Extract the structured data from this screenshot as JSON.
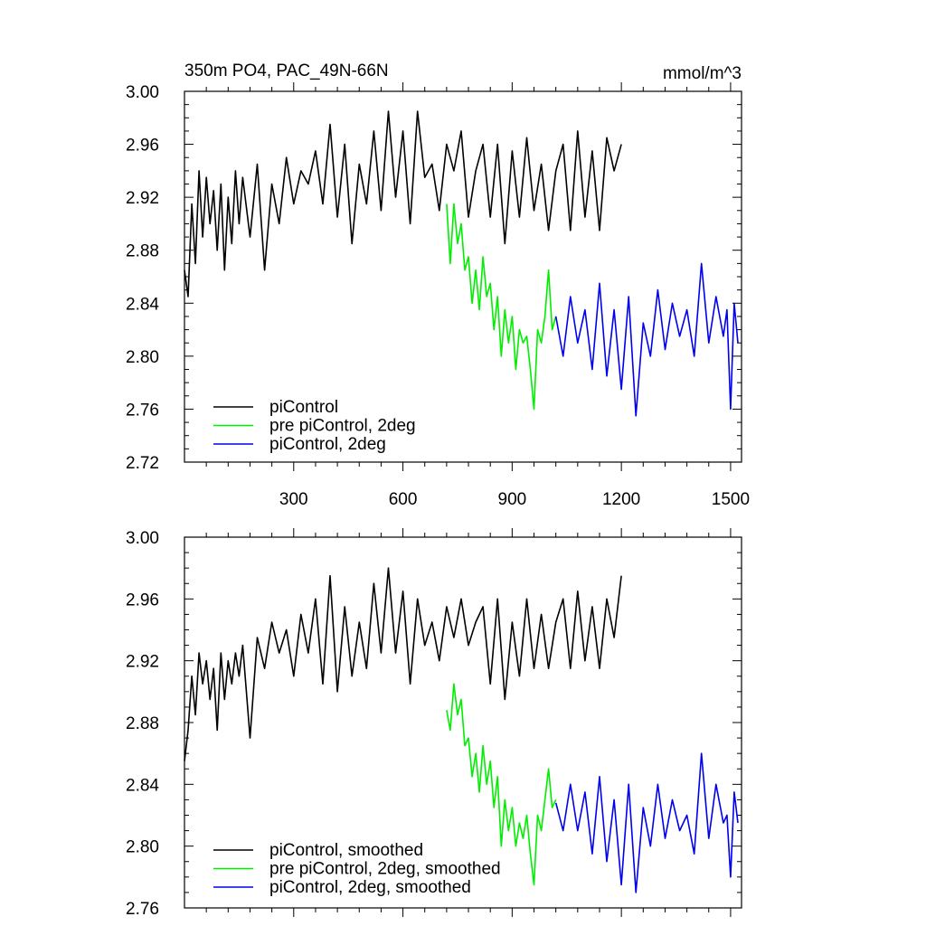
{
  "figure_title": "350m PO4, PAC_49N-66N",
  "units": "mmol/m^3",
  "colors": {
    "piControl": "#000000",
    "pre_piControl_2deg": "#00ee00",
    "piControl_2deg": "#0000ee"
  },
  "chart_data": [
    {
      "type": "line",
      "title": "350m PO4, PAC_49N-66N",
      "units_label": "mmol/m^3",
      "xlabel": "",
      "ylabel": "",
      "xlim": [
        0,
        1530
      ],
      "ylim": [
        2.72,
        3.0
      ],
      "xticks": [
        300,
        600,
        900,
        1200,
        1500
      ],
      "xtick_labels": [
        "300",
        "600",
        "900",
        "1200",
        "1500"
      ],
      "yticks": [
        2.72,
        2.76,
        2.8,
        2.84,
        2.88,
        2.92,
        2.96,
        3.0
      ],
      "ytick_labels": [
        "2.72",
        "2.76",
        "2.80",
        "2.84",
        "2.88",
        "2.92",
        "2.96",
        "3.00"
      ],
      "grid": false,
      "legend_position": "bottom-left",
      "series": [
        {
          "name": "piControl",
          "color": "#000000",
          "x": [
            0,
            10,
            20,
            30,
            40,
            50,
            60,
            70,
            80,
            90,
            100,
            110,
            120,
            130,
            140,
            150,
            160,
            180,
            200,
            220,
            240,
            260,
            280,
            300,
            320,
            340,
            360,
            380,
            400,
            420,
            440,
            460,
            480,
            500,
            520,
            540,
            560,
            580,
            600,
            620,
            640,
            660,
            680,
            700,
            720,
            740,
            760,
            780,
            800,
            820,
            840,
            860,
            880,
            900,
            920,
            940,
            960,
            980,
            1000,
            1020,
            1040,
            1060,
            1080,
            1100,
            1120,
            1140,
            1160,
            1180,
            1200
          ],
          "y": [
            2.865,
            2.845,
            2.915,
            2.87,
            2.94,
            2.89,
            2.935,
            2.9,
            2.925,
            2.88,
            2.93,
            2.865,
            2.92,
            2.885,
            2.94,
            2.9,
            2.935,
            2.89,
            2.945,
            2.865,
            2.93,
            2.9,
            2.95,
            2.915,
            2.94,
            2.93,
            2.955,
            2.915,
            2.975,
            2.905,
            2.96,
            2.885,
            2.945,
            2.915,
            2.97,
            2.91,
            2.985,
            2.92,
            2.97,
            2.9,
            2.985,
            2.935,
            2.945,
            2.91,
            2.96,
            2.94,
            2.97,
            2.905,
            2.94,
            2.96,
            2.905,
            2.96,
            2.885,
            2.955,
            2.905,
            2.965,
            2.91,
            2.945,
            2.895,
            2.94,
            2.96,
            2.895,
            2.97,
            2.905,
            2.955,
            2.895,
            2.965,
            2.94,
            2.96
          ]
        },
        {
          "name": "pre piControl, 2deg",
          "color": "#00ee00",
          "x": [
            720,
            730,
            740,
            750,
            760,
            770,
            780,
            790,
            800,
            810,
            820,
            830,
            840,
            850,
            860,
            870,
            880,
            890,
            900,
            910,
            920,
            930,
            940,
            950,
            960,
            970,
            980,
            990,
            1000,
            1010,
            1020
          ],
          "y": [
            2.915,
            2.87,
            2.915,
            2.885,
            2.9,
            2.865,
            2.875,
            2.84,
            2.865,
            2.835,
            2.875,
            2.845,
            2.855,
            2.82,
            2.845,
            2.8,
            2.835,
            2.81,
            2.83,
            2.79,
            2.82,
            2.81,
            2.815,
            2.79,
            2.76,
            2.82,
            2.81,
            2.83,
            2.865,
            2.82,
            2.83
          ]
        },
        {
          "name": "piControl, 2deg",
          "color": "#0000ee",
          "x": [
            1020,
            1040,
            1060,
            1080,
            1100,
            1120,
            1140,
            1160,
            1180,
            1200,
            1220,
            1240,
            1260,
            1280,
            1300,
            1320,
            1340,
            1360,
            1380,
            1400,
            1420,
            1440,
            1460,
            1480,
            1490,
            1500,
            1510,
            1520
          ],
          "y": [
            2.83,
            2.8,
            2.845,
            2.81,
            2.835,
            2.79,
            2.855,
            2.785,
            2.835,
            2.775,
            2.845,
            2.755,
            2.825,
            2.8,
            2.85,
            2.805,
            2.84,
            2.815,
            2.835,
            2.8,
            2.87,
            2.81,
            2.845,
            2.815,
            2.835,
            2.76,
            2.84,
            2.81
          ]
        }
      ]
    },
    {
      "type": "line",
      "title": "",
      "xlabel": "",
      "ylabel": "",
      "xlim": [
        0,
        1530
      ],
      "ylim": [
        2.76,
        3.0
      ],
      "xticks": [
        300,
        600,
        900,
        1200,
        1500
      ],
      "yticks": [
        2.76,
        2.8,
        2.84,
        2.88,
        2.92,
        2.96,
        3.0
      ],
      "ytick_labels": [
        "2.76",
        "2.80",
        "2.84",
        "2.88",
        "2.92",
        "2.96",
        "3.00"
      ],
      "grid": false,
      "legend_position": "bottom-left",
      "series": [
        {
          "name": "piControl, smoothed",
          "color": "#000000",
          "x": [
            0,
            10,
            20,
            30,
            40,
            50,
            60,
            70,
            80,
            90,
            100,
            110,
            120,
            130,
            140,
            150,
            160,
            180,
            200,
            220,
            240,
            260,
            280,
            300,
            320,
            340,
            360,
            380,
            400,
            420,
            440,
            460,
            480,
            500,
            520,
            540,
            560,
            580,
            600,
            620,
            640,
            660,
            680,
            700,
            720,
            740,
            760,
            780,
            800,
            820,
            840,
            860,
            880,
            900,
            920,
            940,
            960,
            980,
            1000,
            1020,
            1040,
            1060,
            1080,
            1100,
            1120,
            1140,
            1160,
            1180,
            1200
          ],
          "y": [
            2.855,
            2.875,
            2.91,
            2.885,
            2.925,
            2.905,
            2.92,
            2.895,
            2.915,
            2.875,
            2.925,
            2.895,
            2.92,
            2.905,
            2.925,
            2.91,
            2.93,
            2.87,
            2.935,
            2.915,
            2.945,
            2.925,
            2.94,
            2.91,
            2.95,
            2.925,
            2.96,
            2.905,
            2.975,
            2.9,
            2.955,
            2.91,
            2.945,
            2.915,
            2.97,
            2.925,
            2.98,
            2.925,
            2.965,
            2.905,
            2.96,
            2.93,
            2.945,
            2.92,
            2.955,
            2.935,
            2.96,
            2.93,
            2.945,
            2.955,
            2.905,
            2.96,
            2.895,
            2.945,
            2.91,
            2.96,
            2.915,
            2.95,
            2.915,
            2.945,
            2.96,
            2.915,
            2.965,
            2.92,
            2.955,
            2.915,
            2.96,
            2.935,
            2.975
          ]
        },
        {
          "name": "pre piControl, 2deg, smoothed",
          "color": "#00ee00",
          "x": [
            720,
            730,
            740,
            750,
            760,
            770,
            780,
            790,
            800,
            810,
            820,
            830,
            840,
            850,
            860,
            870,
            880,
            890,
            900,
            910,
            920,
            930,
            940,
            950,
            960,
            970,
            980,
            990,
            1000,
            1010,
            1020
          ],
          "y": [
            2.888,
            2.875,
            2.905,
            2.885,
            2.895,
            2.865,
            2.87,
            2.845,
            2.86,
            2.835,
            2.865,
            2.84,
            2.855,
            2.825,
            2.845,
            2.8,
            2.83,
            2.81,
            2.825,
            2.8,
            2.815,
            2.805,
            2.82,
            2.795,
            2.775,
            2.82,
            2.81,
            2.83,
            2.85,
            2.825,
            2.83
          ]
        },
        {
          "name": "piControl, 2deg, smoothed",
          "color": "#0000ee",
          "x": [
            1020,
            1040,
            1060,
            1080,
            1100,
            1120,
            1140,
            1160,
            1180,
            1200,
            1220,
            1240,
            1260,
            1280,
            1300,
            1320,
            1340,
            1360,
            1380,
            1400,
            1420,
            1440,
            1460,
            1480,
            1490,
            1500,
            1510,
            1520
          ],
          "y": [
            2.828,
            2.81,
            2.84,
            2.81,
            2.835,
            2.795,
            2.845,
            2.79,
            2.83,
            2.775,
            2.84,
            2.77,
            2.825,
            2.8,
            2.84,
            2.805,
            2.83,
            2.81,
            2.82,
            2.795,
            2.86,
            2.805,
            2.84,
            2.815,
            2.82,
            2.78,
            2.835,
            2.815
          ]
        }
      ]
    }
  ]
}
